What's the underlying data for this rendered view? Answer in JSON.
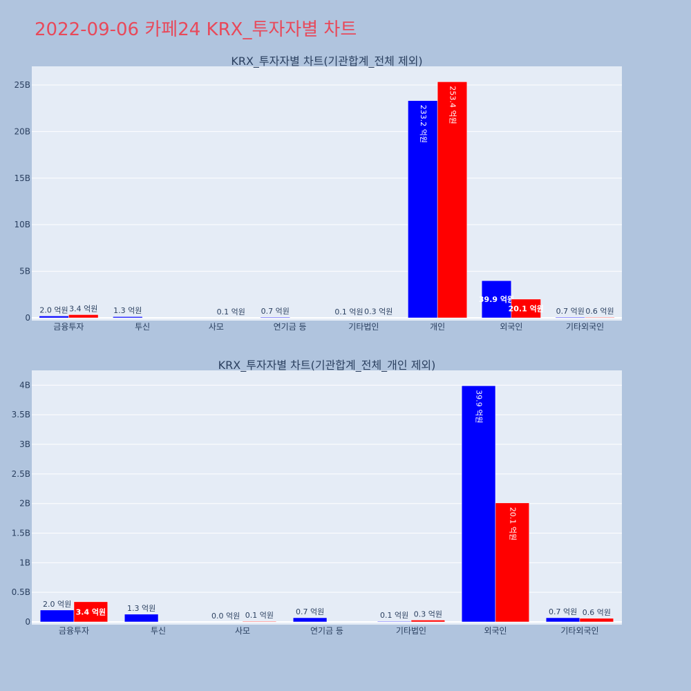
{
  "title": "2022-09-06 카페24 KRX_투자자별 차트",
  "colors": {
    "series_a": "#0000ff",
    "series_b": "#ff0000",
    "plot_bg": "#e5ecf6",
    "page_bg": "#b0c4de",
    "title": "#e8495a"
  },
  "chart_data": [
    {
      "type": "bar",
      "title": "KRX_투자자별 차트(기관합계_전체 제외)",
      "categories": [
        "금융투자",
        "투신",
        "사모",
        "연기금 등",
        "기타법인",
        "개인",
        "외국인",
        "기타외국인"
      ],
      "ylim": [
        0,
        27000000000
      ],
      "yticks": [
        0,
        5000000000,
        10000000000,
        15000000000,
        20000000000,
        25000000000
      ],
      "ytick_labels": [
        "0",
        "5B",
        "10B",
        "15B",
        "20B",
        "25B"
      ],
      "grid": true,
      "series": [
        {
          "values": [
            200000000,
            130000000,
            null,
            70000000,
            10000000,
            23320000000,
            3990000000,
            70000000
          ],
          "labels": [
            "2.0 억원",
            "1.3 억원",
            "",
            "0.7 억원",
            "0.1 억원",
            "233.2 억원",
            "39.9 억원",
            "0.7 억원"
          ]
        },
        {
          "values": [
            340000000,
            null,
            10000000,
            null,
            30000000,
            25340000000,
            2010000000,
            60000000
          ],
          "labels": [
            "3.4 억원",
            "",
            "0.1 억원",
            "",
            "0.3 억원",
            "253.4 억원",
            "20.1 억원",
            "0.6 억원"
          ]
        }
      ]
    },
    {
      "type": "bar",
      "title": "KRX_투자자별 차트(기관합계_전체_개인 제외)",
      "categories": [
        "금융투자",
        "투신",
        "사모",
        "연기금 등",
        "기타법인",
        "외국인",
        "기타외국인"
      ],
      "ylim": [
        0,
        4250000000
      ],
      "yticks": [
        0,
        500000000,
        1000000000,
        1500000000,
        2000000000,
        2500000000,
        3000000000,
        3500000000,
        4000000000
      ],
      "ytick_labels": [
        "0",
        "0.5B",
        "1B",
        "1.5B",
        "2B",
        "2.5B",
        "3B",
        "3.5B",
        "4B"
      ],
      "grid": true,
      "series": [
        {
          "values": [
            200000000,
            130000000,
            0,
            70000000,
            10000000,
            3990000000,
            70000000
          ],
          "labels": [
            "2.0 억원",
            "1.3 억원",
            "0.0 억원",
            "0.7 억원",
            "0.1 억원",
            "39.9 억원",
            "0.7 억원"
          ]
        },
        {
          "values": [
            340000000,
            null,
            10000000,
            null,
            30000000,
            2010000000,
            60000000
          ],
          "labels": [
            "3.4 억원",
            "",
            "0.1 억원",
            "",
            "0.3 억원",
            "20.1 억원",
            "0.6 억원"
          ]
        }
      ]
    }
  ]
}
